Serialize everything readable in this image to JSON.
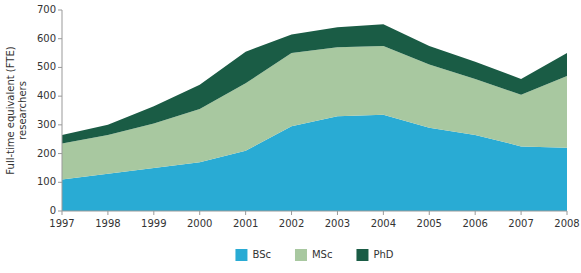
{
  "chart_data": {
    "type": "area",
    "stacked": true,
    "y_label": "Full-time equivalent (FTE)\nresearchers",
    "x": [
      1997,
      1998,
      1999,
      2000,
      2001,
      2002,
      2003,
      2004,
      2005,
      2006,
      2007,
      2008
    ],
    "series": [
      {
        "name": "BSc",
        "color": "#29ABD4",
        "values": [
          110,
          130,
          150,
          170,
          210,
          295,
          330,
          335,
          290,
          265,
          225,
          220
        ]
      },
      {
        "name": "MSc",
        "color": "#A8C8A0",
        "values": [
          125,
          135,
          155,
          185,
          235,
          255,
          240,
          240,
          220,
          195,
          180,
          250
        ]
      },
      {
        "name": "PhD",
        "color": "#1A5C45",
        "values": [
          30,
          35,
          60,
          85,
          110,
          65,
          70,
          75,
          65,
          60,
          55,
          80
        ]
      }
    ],
    "xlim": [
      1997,
      2008
    ],
    "xticks": [
      1997,
      1998,
      1999,
      2000,
      2001,
      2002,
      2003,
      2004,
      2005,
      2006,
      2007,
      2008
    ],
    "ylim": [
      0,
      700
    ],
    "yticks": [
      0,
      100,
      200,
      300,
      400,
      500,
      600,
      700
    ],
    "grid": false,
    "legend": "bottom"
  }
}
